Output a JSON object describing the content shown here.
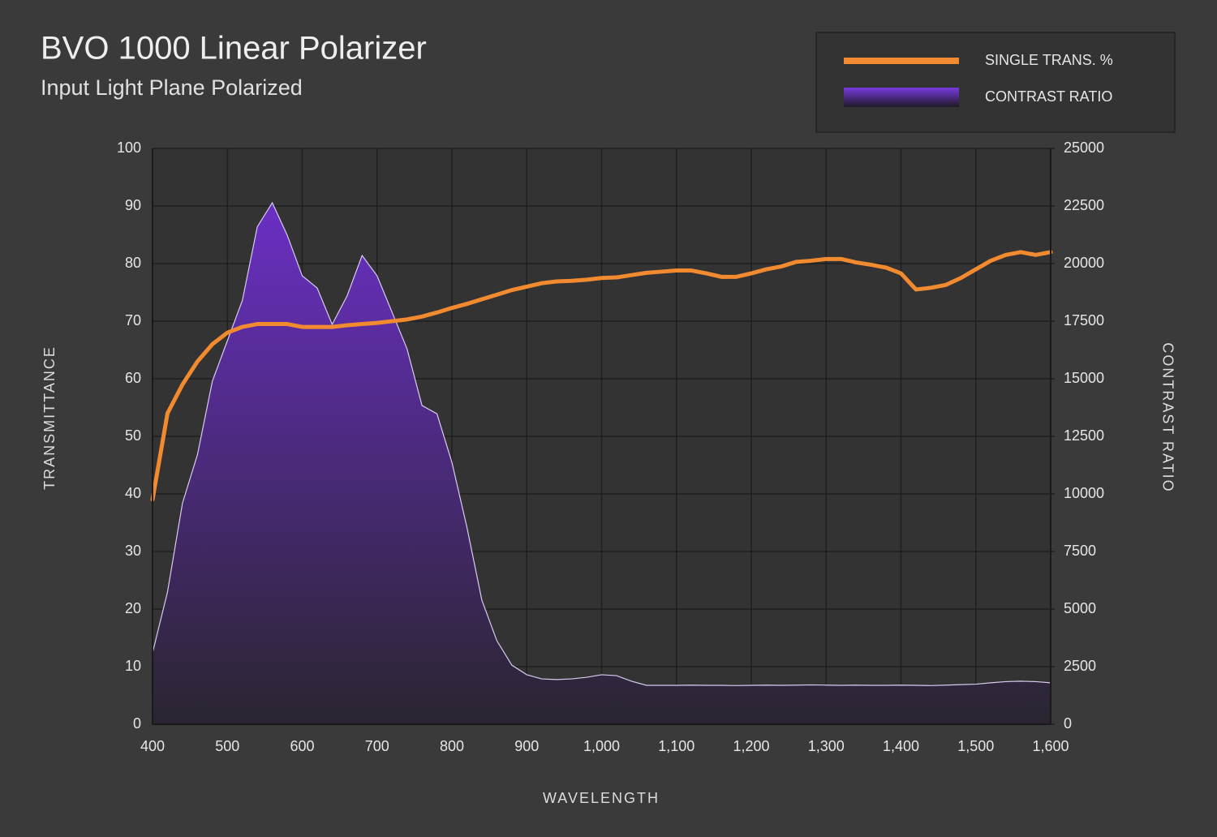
{
  "chart_data": {
    "type": "line",
    "title": "BVO 1000 Linear Polarizer",
    "subtitle": "Input Light Plane Polarized",
    "x_label": "WAVELENGTH",
    "y_label": "TRANSMITTANCE",
    "y2_label": "CONTRAST RATIO",
    "x": [
      400,
      420,
      440,
      460,
      480,
      500,
      520,
      540,
      560,
      580,
      600,
      620,
      640,
      660,
      680,
      700,
      720,
      740,
      760,
      780,
      800,
      820,
      840,
      860,
      880,
      900,
      920,
      940,
      960,
      980,
      1000,
      1020,
      1040,
      1060,
      1080,
      1100,
      1120,
      1140,
      1160,
      1180,
      1200,
      1220,
      1240,
      1260,
      1280,
      1300,
      1320,
      1340,
      1360,
      1380,
      1400,
      1420,
      1440,
      1460,
      1480,
      1500,
      1520,
      1540,
      1560,
      1580,
      1600
    ],
    "series": [
      {
        "name": "CONTRAST RATIO",
        "type": "area",
        "axis": "y2",
        "color": "#6a2fc4",
        "values": [
          3100,
          5740,
          9600,
          11700,
          14900,
          16650,
          18400,
          21600,
          22640,
          21230,
          19470,
          18940,
          17360,
          18600,
          20350,
          19470,
          17890,
          16300,
          13840,
          13480,
          11370,
          8560,
          5390,
          3630,
          2570,
          2150,
          1970,
          1940,
          1970,
          2040,
          2150,
          2110,
          1870,
          1690,
          1690,
          1690,
          1700,
          1690,
          1690,
          1680,
          1690,
          1700,
          1690,
          1700,
          1710,
          1700,
          1690,
          1700,
          1690,
          1690,
          1700,
          1690,
          1680,
          1700,
          1720,
          1740,
          1800,
          1850,
          1870,
          1850,
          1800
        ]
      },
      {
        "name": "SINGLE TRANS. %",
        "type": "line",
        "axis": "y",
        "color": "#f28a30",
        "values": [
          39,
          54,
          59,
          63,
          66,
          68,
          69,
          69.5,
          69.5,
          69.5,
          69,
          69,
          69,
          69.3,
          69.5,
          69.7,
          70,
          70.3,
          70.8,
          71.5,
          72.3,
          73,
          73.8,
          74.6,
          75.4,
          76,
          76.6,
          76.9,
          77,
          77.2,
          77.5,
          77.6,
          78,
          78.4,
          78.6,
          78.8,
          78.8,
          78.3,
          77.7,
          77.7,
          78.3,
          79,
          79.5,
          80.3,
          80.5,
          80.8,
          80.8,
          80.2,
          79.8,
          79.3,
          78.3,
          75.5,
          75.8,
          76.3,
          77.5,
          79,
          80.5,
          81.5,
          82,
          81.5,
          82
        ]
      }
    ],
    "xlim": [
      400,
      1600
    ],
    "xticks": [
      400,
      500,
      600,
      700,
      800,
      900,
      {
        "value": 1000,
        "label": "1,000"
      },
      {
        "value": 1100,
        "label": "1,100"
      },
      {
        "value": 1200,
        "label": "1,200"
      },
      {
        "value": 1300,
        "label": "1,300"
      },
      {
        "value": 1400,
        "label": "1,400"
      },
      {
        "value": 1500,
        "label": "1,500"
      },
      {
        "value": 1600,
        "label": "1,600"
      }
    ],
    "ylim": [
      0,
      100
    ],
    "yticks": [
      0,
      10,
      20,
      30,
      40,
      50,
      60,
      70,
      80,
      90,
      100
    ],
    "y2lim": [
      0,
      25000
    ],
    "y2ticks": [
      0,
      2500,
      5000,
      7500,
      10000,
      12500,
      15000,
      17500,
      20000,
      22500,
      25000
    ],
    "grid": true,
    "legend": "top-right"
  }
}
